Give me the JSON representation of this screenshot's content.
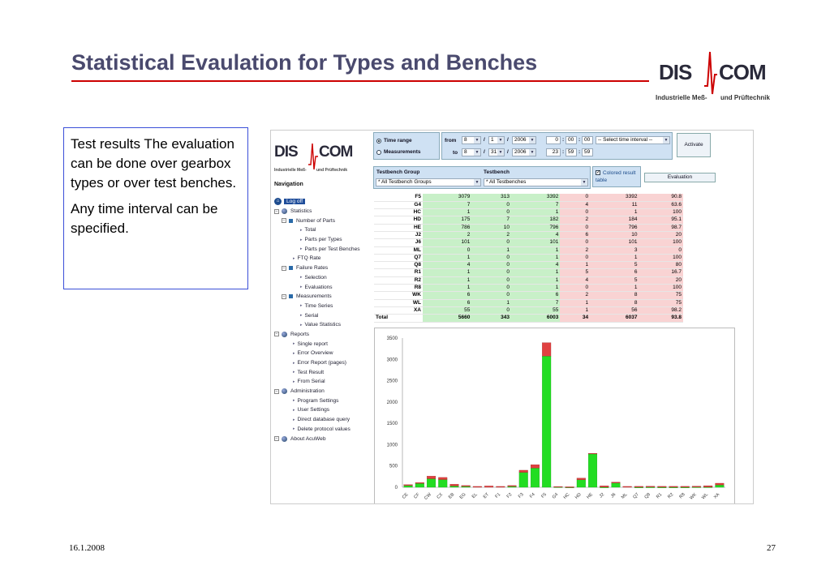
{
  "slide": {
    "title": "Statistical Evaulation for Types and Benches",
    "date": "16.1.2008",
    "page": "27"
  },
  "logo": {
    "part1": "DIS",
    "part2": "COM",
    "sub_left": "Industrielle Meß-",
    "sub_right": "und Prüftechnik"
  },
  "text": {
    "p1": "Test results The evaluation can be done over gearbox types or over test benches.",
    "p2": "Any time interval can be specified."
  },
  "app": {
    "navigation_title": "Navigation",
    "nav": [
      {
        "label": "Log off",
        "kind": "home",
        "indent": 0
      },
      {
        "label": "Statistics",
        "kind": "dot",
        "indent": 0
      },
      {
        "label": "Number of Parts",
        "kind": "sq",
        "indent": 1
      },
      {
        "label": "Total",
        "kind": "arr",
        "indent": 2
      },
      {
        "label": "Parts per Types",
        "kind": "arr",
        "indent": 2
      },
      {
        "label": "Parts per Test Benches",
        "kind": "arr",
        "indent": 2
      },
      {
        "label": "FTQ Rate",
        "kind": "arr",
        "indent": 1
      },
      {
        "label": "Failure Rates",
        "kind": "sq",
        "indent": 1
      },
      {
        "label": "Selection",
        "kind": "arr",
        "indent": 2
      },
      {
        "label": "Evaluations",
        "kind": "arr",
        "indent": 2
      },
      {
        "label": "Measurements",
        "kind": "sq",
        "indent": 1
      },
      {
        "label": "Time Series",
        "kind": "arr",
        "indent": 2
      },
      {
        "label": "Serial",
        "kind": "arr",
        "indent": 2
      },
      {
        "label": "Value Statistics",
        "kind": "arr",
        "indent": 2
      },
      {
        "label": "Reports",
        "kind": "dot",
        "indent": 0
      },
      {
        "label": "Single report",
        "kind": "arr",
        "indent": 1
      },
      {
        "label": "Error Overview",
        "kind": "arr",
        "indent": 1
      },
      {
        "label": "Error Report (pages)",
        "kind": "arr",
        "indent": 1
      },
      {
        "label": "Test Result",
        "kind": "arr",
        "indent": 1
      },
      {
        "label": "From Serial",
        "kind": "arr",
        "indent": 1
      },
      {
        "label": "Administration",
        "kind": "dot",
        "indent": 0
      },
      {
        "label": "Program Settings",
        "kind": "arr",
        "indent": 1
      },
      {
        "label": "User Settings",
        "kind": "arr",
        "indent": 1
      },
      {
        "label": "Direct database query",
        "kind": "arr",
        "indent": 1
      },
      {
        "label": "Delete protocol values",
        "kind": "arr",
        "indent": 1
      },
      {
        "label": "About AcuWeb",
        "kind": "dot",
        "indent": 0
      }
    ],
    "time": {
      "radio_time": "Time range",
      "radio_meas": "Measurements",
      "from": "from",
      "to": "to",
      "from_month": "8",
      "from_day": "1",
      "from_year": "2006",
      "to_month": "8",
      "to_day": "31",
      "to_year": "2006",
      "from_h": "0",
      "from_m": "00",
      "from_s": "00",
      "to_h": "23",
      "to_m": "59",
      "to_s": "59",
      "slash": "/",
      "colon": ":",
      "interval": "-- Select time interval --",
      "activate": "Activate"
    },
    "filter": {
      "group_label": "Testbench Group",
      "bench_label": "Testbench",
      "group_value": "* All Testbench Groups",
      "bench_value": "* All Testbenches",
      "colored": "Colored result table",
      "evaluation": "Evaluation"
    },
    "rows": [
      [
        "F5",
        "3079",
        "313",
        "3392",
        "0",
        "3392",
        "90.8"
      ],
      [
        "G4",
        "7",
        "0",
        "7",
        "4",
        "11",
        "63.6"
      ],
      [
        "HC",
        "1",
        "0",
        "1",
        "0",
        "1",
        "100"
      ],
      [
        "HD",
        "175",
        "7",
        "182",
        "2",
        "184",
        "95.1"
      ],
      [
        "HE",
        "786",
        "10",
        "796",
        "0",
        "796",
        "98.7"
      ],
      [
        "J2",
        "2",
        "2",
        "4",
        "6",
        "10",
        "20"
      ],
      [
        "J6",
        "101",
        "0",
        "101",
        "0",
        "101",
        "100"
      ],
      [
        "ML",
        "0",
        "1",
        "1",
        "2",
        "3",
        "0"
      ],
      [
        "Q7",
        "1",
        "0",
        "1",
        "0",
        "1",
        "100"
      ],
      [
        "Q8",
        "4",
        "0",
        "4",
        "1",
        "5",
        "80"
      ],
      [
        "R1",
        "1",
        "0",
        "1",
        "5",
        "6",
        "16.7"
      ],
      [
        "R2",
        "1",
        "0",
        "1",
        "4",
        "5",
        "20"
      ],
      [
        "R8",
        "1",
        "0",
        "1",
        "0",
        "1",
        "100"
      ],
      [
        "WK",
        "6",
        "0",
        "6",
        "2",
        "8",
        "75"
      ],
      [
        "WL",
        "6",
        "1",
        "7",
        "1",
        "8",
        "75"
      ],
      [
        "XA",
        "55",
        "0",
        "55",
        "1",
        "56",
        "98.2"
      ],
      [
        "Total",
        "5660",
        "343",
        "6003",
        "34",
        "6037",
        "93.8"
      ]
    ]
  },
  "chart_data": {
    "type": "bar",
    "categories": [
      "CE",
      "CF",
      "CW",
      "CX",
      "EB",
      "EG",
      "EL",
      "ET",
      "F1",
      "F2",
      "F3",
      "F4",
      "F5",
      "G4",
      "HC",
      "HD",
      "HE",
      "J2",
      "J6",
      "ML",
      "Q7",
      "Q8",
      "R1",
      "R2",
      "R8",
      "WK",
      "WL",
      "XA"
    ],
    "ylim": [
      0,
      3500
    ],
    "yticks": [
      0,
      500,
      1000,
      1500,
      2000,
      2500,
      3000,
      3500
    ],
    "series": [
      {
        "color": "#22dd22",
        "values": [
          40,
          90,
          200,
          180,
          30,
          20,
          0,
          0,
          0,
          20,
          350,
          450,
          3079,
          7,
          1,
          175,
          786,
          2,
          101,
          0,
          1,
          4,
          1,
          1,
          1,
          6,
          6,
          55
        ]
      },
      {
        "color": "#e04040",
        "values": [
          20,
          20,
          60,
          50,
          40,
          20,
          20,
          30,
          20,
          20,
          50,
          80,
          313,
          10,
          10,
          40,
          10,
          30,
          20,
          20,
          20,
          20,
          20,
          20,
          20,
          20,
          30,
          40
        ]
      }
    ]
  }
}
